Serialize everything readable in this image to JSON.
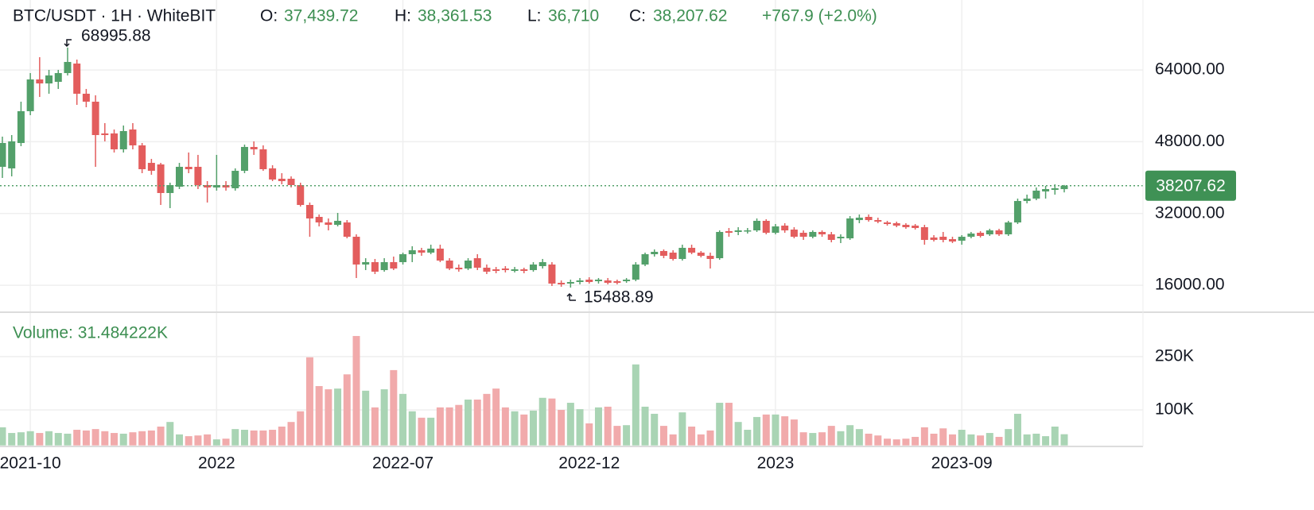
{
  "chart_data": {
    "type": "candlestick",
    "title": "BTC/USDT · 1H · WhiteBIT",
    "ohlc_header": [
      {
        "label": "O:",
        "value": "37,439.72"
      },
      {
        "label": "H:",
        "value": "38,361.53"
      },
      {
        "label": "L:",
        "value": "36,710"
      },
      {
        "label": "C:",
        "value": "38,207.62"
      }
    ],
    "change": "+767.9 (+2.0%)",
    "volume_title": "Volume: 31.484222K",
    "categories": [
      null,
      null,
      null,
      "2021-10",
      null,
      null,
      null,
      null,
      null,
      null,
      null,
      null,
      null,
      null,
      null,
      null,
      null,
      null,
      null,
      null,
      null,
      null,
      null,
      "2022",
      null,
      null,
      null,
      null,
      null,
      null,
      null,
      null,
      null,
      null,
      null,
      null,
      null,
      null,
      null,
      null,
      null,
      null,
      null,
      "2022-07",
      null,
      null,
      null,
      null,
      null,
      null,
      null,
      null,
      null,
      null,
      null,
      null,
      null,
      null,
      null,
      null,
      null,
      null,
      null,
      "2022-12",
      null,
      null,
      null,
      null,
      null,
      null,
      null,
      null,
      null,
      null,
      null,
      null,
      null,
      null,
      null,
      null,
      null,
      null,
      null,
      "2023",
      null,
      null,
      null,
      null,
      null,
      null,
      null,
      null,
      null,
      null,
      null,
      null,
      null,
      null,
      null,
      null,
      null,
      null,
      null,
      "2023-09",
      null,
      null,
      null,
      null,
      null,
      null,
      null,
      null,
      null,
      null,
      null
    ],
    "open": [
      42410,
      42060,
      47720,
      54810,
      61890,
      61000,
      61360,
      63310,
      65430,
      58700,
      56930,
      49850,
      49850,
      46310,
      50730,
      47190,
      43290,
      42940,
      36570,
      37980,
      42410,
      42410,
      38340,
      37800,
      38340,
      37630,
      41520,
      46840,
      46310,
      42060,
      39750,
      39750,
      38340,
      33910,
      31250,
      30010,
      29480,
      30010,
      26820,
      20630,
      21160,
      19390,
      21160,
      21160,
      22930,
      23810,
      23280,
      24170,
      21510,
      19920,
      19740,
      22040,
      19920,
      19560,
      19740,
      19210,
      19560,
      19390,
      20270,
      20630,
      16550,
      16380,
      16730,
      17260,
      16910,
      17080,
      16910,
      16910,
      17260,
      20630,
      22930,
      23640,
      23280,
      21870,
      24350,
      23280,
      22570,
      22040,
      28060,
      27890,
      28060,
      28240,
      30370,
      27710,
      29300,
      28420,
      27710,
      26820,
      27890,
      27360,
      26470,
      26470,
      30540,
      31250,
      30540,
      30010,
      29840,
      29480,
      29300,
      28950,
      26650,
      26820,
      26290,
      25940,
      26820,
      27710,
      27360,
      28240,
      27360,
      30010,
      34790,
      35330,
      36920,
      37270,
      37439.72
    ],
    "high": [
      49140,
      49490,
      56930,
      63310,
      66850,
      64020,
      64020,
      68995.88,
      66320,
      59770,
      58350,
      52150,
      50730,
      51620,
      52150,
      47720,
      44180,
      43290,
      38870,
      43290,
      45600,
      45070,
      39220,
      45070,
      39220,
      42060,
      47370,
      48080,
      47190,
      42760,
      40990,
      40280,
      38870,
      34450,
      31780,
      30900,
      32140,
      30540,
      27360,
      22040,
      21870,
      22040,
      22400,
      23280,
      24700,
      24350,
      25050,
      25050,
      22040,
      20630,
      22040,
      22930,
      20630,
      20090,
      20270,
      20090,
      19920,
      21160,
      21870,
      21160,
      17080,
      17260,
      17620,
      17790,
      17620,
      17620,
      17260,
      17620,
      21160,
      23280,
      23990,
      23990,
      23810,
      25050,
      25050,
      23640,
      23280,
      28240,
      28770,
      28950,
      28770,
      30900,
      30720,
      29660,
      29840,
      28950,
      28240,
      28240,
      28240,
      27890,
      27360,
      31430,
      31780,
      31780,
      31070,
      30370,
      30190,
      29840,
      29660,
      29480,
      27180,
      27890,
      26820,
      27180,
      27890,
      28060,
      28600,
      28600,
      30370,
      35330,
      36210,
      37800,
      38160,
      38510,
      38361.53
    ],
    "low": [
      39930,
      40280,
      47010,
      53920,
      57990,
      58700,
      59770,
      62780,
      56220,
      55690,
      42410,
      48080,
      45600,
      45600,
      46310,
      40990,
      40640,
      33910,
      33200,
      37450,
      40990,
      37450,
      34450,
      37100,
      37100,
      37100,
      40990,
      45070,
      41520,
      39220,
      38510,
      37800,
      33550,
      26820,
      29130,
      28240,
      29130,
      26470,
      17620,
      19390,
      18500,
      19030,
      19390,
      20630,
      21160,
      22570,
      22930,
      21160,
      19390,
      19030,
      19390,
      19390,
      18500,
      18680,
      18860,
      18860,
      18680,
      19030,
      19740,
      15840,
      15670,
      15488.89,
      16200,
      16380,
      16380,
      16200,
      16200,
      16550,
      16910,
      20270,
      22400,
      22040,
      21510,
      21510,
      22930,
      22220,
      19740,
      21690,
      26820,
      27180,
      27530,
      27890,
      27360,
      27360,
      27710,
      26470,
      26120,
      26470,
      26820,
      25580,
      25410,
      26120,
      29840,
      30190,
      29840,
      29300,
      28950,
      28600,
      28420,
      25050,
      25760,
      25580,
      25410,
      25050,
      26470,
      26650,
      27000,
      27000,
      27000,
      29660,
      34260,
      34970,
      35330,
      36210,
      36710
    ],
    "close": [
      47720,
      48080,
      54810,
      61890,
      61000,
      62780,
      63310,
      65790,
      58700,
      56930,
      49490,
      49490,
      46310,
      50380,
      47190,
      41880,
      41520,
      36570,
      38340,
      42410,
      41880,
      38340,
      37800,
      38340,
      37800,
      41520,
      46840,
      46310,
      41880,
      39580,
      39220,
      38340,
      33910,
      30900,
      30010,
      29480,
      30370,
      26820,
      20630,
      21160,
      19030,
      21160,
      19740,
      22930,
      23810,
      23280,
      24170,
      21510,
      19740,
      19560,
      21510,
      19920,
      19030,
      19210,
      19390,
      19560,
      19210,
      20630,
      21160,
      16380,
      16200,
      16730,
      17080,
      16730,
      17260,
      16550,
      16550,
      17260,
      20630,
      22930,
      23460,
      22570,
      21870,
      24350,
      23280,
      22570,
      21870,
      27890,
      27710,
      28240,
      28240,
      30370,
      27710,
      29130,
      28240,
      26820,
      26820,
      27890,
      27360,
      26120,
      26820,
      30900,
      31070,
      30540,
      30190,
      29660,
      29300,
      28950,
      28770,
      26120,
      26120,
      26120,
      25760,
      26820,
      27530,
      27000,
      28240,
      27360,
      30010,
      34790,
      35330,
      37100,
      37450,
      37630,
      38207.62
    ],
    "volume": [
      51000,
      35000,
      37000,
      40000,
      35000,
      40000,
      35000,
      33000,
      44000,
      42000,
      46000,
      40000,
      35000,
      33000,
      37000,
      40000,
      42000,
      53000,
      66000,
      31000,
      26000,
      28000,
      31000,
      17000,
      19000,
      46000,
      44000,
      42000,
      42000,
      44000,
      53000,
      66000,
      96000,
      248000,
      167000,
      158000,
      160000,
      200000,
      308000,
      154000,
      107000,
      158000,
      212000,
      145000,
      96000,
      78000,
      78000,
      107000,
      107000,
      114000,
      129000,
      129000,
      145000,
      160000,
      107000,
      96000,
      87000,
      98000,
      134000,
      132000,
      100000,
      120000,
      102000,
      62000,
      107000,
      109000,
      55000,
      57000,
      228000,
      109000,
      89000,
      55000,
      31000,
      93000,
      53000,
      31000,
      42000,
      120000,
      120000,
      66000,
      44000,
      80000,
      87000,
      87000,
      82000,
      73000,
      37000,
      35000,
      37000,
      55000,
      40000,
      57000,
      46000,
      33000,
      28000,
      19000,
      17000,
      19000,
      24000,
      51000,
      33000,
      48000,
      31000,
      44000,
      31000,
      28000,
      35000,
      24000,
      46000,
      89000,
      31000,
      33000,
      26000,
      53000,
      31484.222
    ],
    "ylim": [
      10000,
      79600
    ],
    "yticks": [
      {
        "value": 16000,
        "label": "16000.00"
      },
      {
        "value": 32000,
        "label": "32000.00"
      },
      {
        "value": 48000,
        "label": "48000.00"
      },
      {
        "value": 64000,
        "label": "64000.00"
      }
    ],
    "volume_ylim": [
      0,
      375000
    ],
    "volume_yticks": [
      {
        "value": 100000,
        "label": "100K"
      },
      {
        "value": 250000,
        "label": "250K"
      }
    ],
    "up_color": "#53a06a",
    "down_color": "#e35d5d",
    "volume_up_color": "#a9d4b4",
    "volume_down_color": "#f1aaab",
    "grid": true
  }
}
